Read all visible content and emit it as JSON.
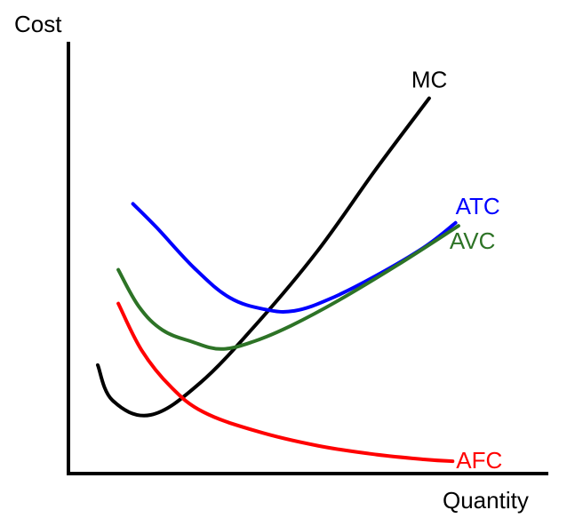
{
  "chart_data": {
    "type": "line",
    "xlabel": "Quantity",
    "ylabel": "Cost",
    "grid": false,
    "ticks": false,
    "series": [
      {
        "name": "MC",
        "color": "#000000",
        "points": [
          [
            1.0,
            3.7
          ],
          [
            1.5,
            2.5
          ],
          [
            2.8,
            2.0
          ],
          [
            4.5,
            3.1
          ],
          [
            6.5,
            5.2
          ],
          [
            8.5,
            7.6
          ],
          [
            10.5,
            10.4
          ],
          [
            12.3,
            12.8
          ]
        ]
      },
      {
        "name": "ATC",
        "color": "#0000ff",
        "points": [
          [
            2.2,
            9.2
          ],
          [
            3.0,
            8.4
          ],
          [
            4.3,
            7.0
          ],
          [
            5.5,
            6.0
          ],
          [
            6.7,
            5.6
          ],
          [
            7.7,
            5.55
          ],
          [
            8.9,
            5.95
          ],
          [
            10.4,
            6.7
          ],
          [
            12.1,
            7.7
          ],
          [
            13.2,
            8.55
          ]
        ]
      },
      {
        "name": "AVC",
        "color": "#2d7326",
        "points": [
          [
            1.7,
            6.95
          ],
          [
            2.4,
            5.7
          ],
          [
            3.2,
            4.9
          ],
          [
            4.2,
            4.5
          ],
          [
            5.2,
            4.25
          ],
          [
            6.3,
            4.5
          ],
          [
            7.6,
            5.05
          ],
          [
            9.2,
            5.9
          ],
          [
            11.2,
            7.1
          ],
          [
            13.3,
            8.45
          ]
        ]
      },
      {
        "name": "AFC",
        "color": "#ff0000",
        "points": [
          [
            1.7,
            5.8
          ],
          [
            2.5,
            4.2
          ],
          [
            3.5,
            2.95
          ],
          [
            4.6,
            2.1
          ],
          [
            6.4,
            1.45
          ],
          [
            8.5,
            0.95
          ],
          [
            10.5,
            0.65
          ],
          [
            12.2,
            0.48
          ],
          [
            13.1,
            0.42
          ]
        ]
      }
    ]
  }
}
